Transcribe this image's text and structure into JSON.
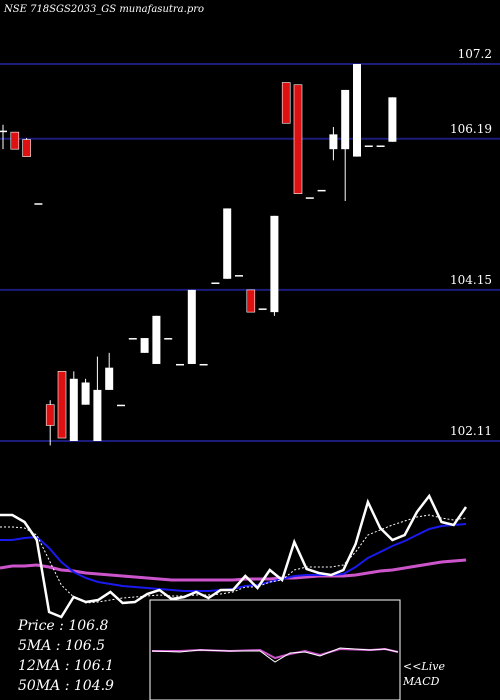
{
  "header": {
    "title": "NSE 718SGS2033_GS munafasutra.pro"
  },
  "colors": {
    "background": "#000000",
    "gridline": "#1c1c7a",
    "up_candle": "#ffffff",
    "down_candle": "#dd1111",
    "price_line": "#ffffff",
    "ma5_line": "#ffffff",
    "ma12_line": "#1a1aee",
    "ma50_line": "#cc55cc",
    "macd_box": "#ffffff"
  },
  "stats": {
    "price": "Price   : 106.8",
    "ma5": "5MA : 106.5",
    "ma12": "12MA : 106.1",
    "ma50": "50MA : 104.9"
  },
  "macd": {
    "live_label": "<<Live",
    "macd_label": "MACD"
  },
  "chart_data": {
    "type": "candlestick",
    "y_ticks": [
      107.2,
      106.19,
      104.15,
      102.11
    ],
    "ylim": [
      101.85,
      107.45
    ],
    "candles": [
      {
        "o": 106.3,
        "h": 106.38,
        "l": 106.05,
        "c": 106.3
      },
      {
        "o": 106.28,
        "h": 106.28,
        "l": 106.05,
        "c": 106.05
      },
      {
        "o": 106.18,
        "h": 106.2,
        "l": 105.95,
        "c": 105.95
      },
      {
        "o": 105.32,
        "h": 105.32,
        "l": 105.32,
        "c": 105.32
      },
      {
        "o": 102.6,
        "h": 102.66,
        "l": 102.05,
        "c": 102.32
      },
      {
        "o": 103.05,
        "h": 103.05,
        "l": 102.15,
        "c": 102.15
      },
      {
        "o": 102.11,
        "h": 103.05,
        "l": 102.11,
        "c": 102.95
      },
      {
        "o": 102.6,
        "h": 102.95,
        "l": 102.6,
        "c": 102.9
      },
      {
        "o": 102.11,
        "h": 103.25,
        "l": 102.11,
        "c": 102.8
      },
      {
        "o": 102.8,
        "h": 103.3,
        "l": 102.8,
        "c": 103.1
      },
      {
        "o": 102.6,
        "h": 102.6,
        "l": 102.6,
        "c": 102.6
      },
      {
        "o": 103.5,
        "h": 103.5,
        "l": 103.5,
        "c": 103.5
      },
      {
        "o": 103.3,
        "h": 103.5,
        "l": 103.3,
        "c": 103.5
      },
      {
        "o": 103.15,
        "h": 103.8,
        "l": 103.15,
        "c": 103.8
      },
      {
        "o": 103.5,
        "h": 103.5,
        "l": 103.5,
        "c": 103.5
      },
      {
        "o": 103.15,
        "h": 103.15,
        "l": 103.15,
        "c": 103.15
      },
      {
        "o": 103.15,
        "h": 104.15,
        "l": 103.15,
        "c": 104.15
      },
      {
        "o": 103.15,
        "h": 103.15,
        "l": 103.15,
        "c": 103.15
      },
      {
        "o": 104.25,
        "h": 104.25,
        "l": 104.25,
        "c": 104.25
      },
      {
        "o": 104.3,
        "h": 105.25,
        "l": 104.3,
        "c": 105.25
      },
      {
        "o": 104.35,
        "h": 104.35,
        "l": 104.35,
        "c": 104.35
      },
      {
        "o": 104.15,
        "h": 104.15,
        "l": 103.85,
        "c": 103.85
      },
      {
        "o": 103.9,
        "h": 103.9,
        "l": 103.9,
        "c": 103.9
      },
      {
        "o": 103.85,
        "h": 105.15,
        "l": 103.8,
        "c": 105.15
      },
      {
        "o": 106.95,
        "h": 106.95,
        "l": 106.4,
        "c": 106.4
      },
      {
        "o": 106.92,
        "h": 106.92,
        "l": 105.45,
        "c": 105.45
      },
      {
        "o": 105.4,
        "h": 105.4,
        "l": 105.4,
        "c": 105.4
      },
      {
        "o": 105.5,
        "h": 105.5,
        "l": 105.5,
        "c": 105.5
      },
      {
        "o": 106.05,
        "h": 106.35,
        "l": 105.9,
        "c": 106.25
      },
      {
        "o": 106.05,
        "h": 106.85,
        "l": 105.35,
        "c": 106.85
      },
      {
        "o": 105.95,
        "h": 107.2,
        "l": 105.95,
        "c": 107.2
      },
      {
        "o": 106.1,
        "h": 106.1,
        "l": 106.1,
        "c": 106.1
      },
      {
        "o": 106.1,
        "h": 106.1,
        "l": 106.1,
        "c": 106.1
      },
      {
        "o": 106.15,
        "h": 106.75,
        "l": 106.15,
        "c": 106.75
      }
    ],
    "lower_panel": {
      "price_line": [
        515,
        515,
        522,
        540,
        612,
        617,
        597,
        602,
        600,
        592,
        603,
        602,
        594,
        590,
        599,
        597,
        592,
        598,
        590,
        590,
        576,
        588,
        570,
        580,
        542,
        569,
        573,
        575,
        570,
        544,
        502,
        528,
        540,
        535,
        512,
        496,
        522,
        525,
        507
      ],
      "ma5_line": [
        527,
        527,
        528,
        535,
        560,
        585,
        597,
        603,
        602,
        600,
        598,
        597,
        596,
        595,
        596,
        596,
        595,
        595,
        594,
        592,
        587,
        587,
        582,
        580,
        570,
        567,
        567,
        567,
        565,
        552,
        535,
        530,
        525,
        521,
        517,
        515,
        518,
        520,
        518
      ],
      "ma12_line": [
        540,
        540,
        538,
        537,
        548,
        562,
        572,
        578,
        582,
        584,
        586,
        587,
        588,
        589,
        590,
        591,
        591,
        591,
        590,
        589,
        586,
        585,
        582,
        579,
        576,
        575,
        575,
        575,
        574,
        567,
        558,
        552,
        546,
        541,
        535,
        529,
        526,
        525,
        524
      ],
      "ma50_line": [
        568,
        566,
        566,
        565,
        567,
        570,
        571,
        573,
        574,
        575,
        576,
        577,
        578,
        579,
        580,
        580,
        580,
        580,
        580,
        580,
        579,
        579,
        579,
        578,
        578,
        577,
        576,
        576,
        576,
        575,
        573,
        571,
        570,
        568,
        566,
        564,
        562,
        561,
        560
      ]
    }
  }
}
